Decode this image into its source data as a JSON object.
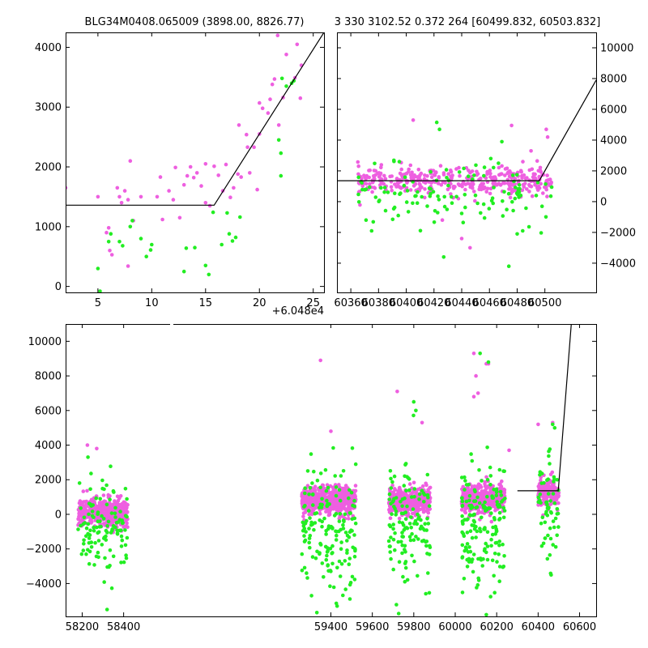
{
  "colors": {
    "magenta": "#EE5FE0",
    "green": "#22EE22",
    "line": "#000000",
    "axes": "#000000"
  },
  "panels": {
    "top_left": {
      "title": "BLG34M0408.065009 (3898.00, 8826.77)",
      "offset_label": "+6.048e4",
      "xticks": [
        5,
        10,
        15,
        20,
        25
      ],
      "yticks": [
        0,
        1000,
        2000,
        3000,
        4000
      ]
    },
    "top_right": {
      "title": "3 330 3102.52 0.372 264 [60499.832, 60503.832]",
      "xticks": [
        60360,
        60380,
        60400,
        60420,
        60440,
        60460,
        60480,
        60500
      ],
      "yticks": [
        -4000,
        -2000,
        0,
        2000,
        4000,
        6000,
        8000,
        10000
      ]
    },
    "bottom": {
      "xticks": [
        58200,
        58400,
        59400,
        59600,
        59800,
        60000,
        60200,
        60400,
        60600
      ],
      "yticks": [
        -4000,
        -2000,
        0,
        2000,
        4000,
        6000,
        8000,
        10000
      ]
    }
  },
  "chart_data": [
    {
      "type": "scatter",
      "title": "BLG34M0408.065009 (3898.00, 8826.77)",
      "x_offset": 60480,
      "xlim": [
        2,
        26
      ],
      "ylim": [
        -100,
        4250
      ],
      "grid": false,
      "model_line": [
        [
          2,
          1360
        ],
        [
          15.8,
          1360
        ],
        [
          26,
          4250
        ]
      ],
      "series": [
        {
          "color": "magenta",
          "points": [
            [
              2,
              1650
            ],
            [
              5,
              1500
            ],
            [
              5.8,
              900
            ],
            [
              6,
              980
            ],
            [
              6.1,
              600
            ],
            [
              6.3,
              530
            ],
            [
              6.8,
              1650
            ],
            [
              7,
              1500
            ],
            [
              7.2,
              1400
            ],
            [
              7.5,
              1600
            ],
            [
              7.8,
              1450
            ],
            [
              8,
              2100
            ],
            [
              8.3,
              1100
            ],
            [
              7.8,
              340
            ],
            [
              9,
              1500
            ],
            [
              10.5,
              1500
            ],
            [
              10.8,
              1830
            ],
            [
              11,
              1120
            ],
            [
              11.6,
              1600
            ],
            [
              12,
              1450
            ],
            [
              12.2,
              1990
            ],
            [
              12.6,
              1150
            ],
            [
              13,
              1700
            ],
            [
              13.3,
              1850
            ],
            [
              13.6,
              2000
            ],
            [
              13.9,
              1820
            ],
            [
              14.2,
              1900
            ],
            [
              14.6,
              1680
            ],
            [
              15,
              2050
            ],
            [
              15,
              1400
            ],
            [
              15.4,
              1350
            ],
            [
              15.8,
              2010
            ],
            [
              16.2,
              1860
            ],
            [
              16.6,
              1600
            ],
            [
              16.9,
              2040
            ],
            [
              17.3,
              1490
            ],
            [
              17.6,
              1650
            ],
            [
              18,
              1880
            ],
            [
              18.3,
              1830
            ],
            [
              18.1,
              2700
            ],
            [
              18.8,
              2540
            ],
            [
              18.9,
              2330
            ],
            [
              19.5,
              2330
            ],
            [
              19.1,
              1900
            ],
            [
              19.8,
              1620
            ],
            [
              20,
              3070
            ],
            [
              20,
              2550
            ],
            [
              20.3,
              2980
            ],
            [
              20.8,
              2900
            ],
            [
              21,
              3130
            ],
            [
              21.2,
              3380
            ],
            [
              21.4,
              3470
            ],
            [
              21.8,
              2700
            ],
            [
              21.7,
              4200
            ],
            [
              22.2,
              3160
            ],
            [
              22.5,
              3880
            ],
            [
              23.3,
              3490
            ],
            [
              23.5,
              4050
            ],
            [
              23.8,
              3150
            ],
            [
              23.9,
              3700
            ]
          ]
        },
        {
          "color": "green",
          "points": [
            [
              5,
              300
            ],
            [
              5.2,
              -80
            ],
            [
              6,
              750
            ],
            [
              6.2,
              880
            ],
            [
              7,
              750
            ],
            [
              7.3,
              680
            ],
            [
              8,
              1000
            ],
            [
              8.2,
              1100
            ],
            [
              9,
              800
            ],
            [
              9.5,
              500
            ],
            [
              9.9,
              610
            ],
            [
              10,
              700
            ],
            [
              13,
              250
            ],
            [
              13.2,
              640
            ],
            [
              14,
              650
            ],
            [
              15,
              350
            ],
            [
              15.3,
              200
            ],
            [
              15.7,
              1240
            ],
            [
              16.5,
              700
            ],
            [
              17,
              1230
            ],
            [
              17.2,
              880
            ],
            [
              17.5,
              760
            ],
            [
              17.8,
              820
            ],
            [
              18.2,
              1160
            ],
            [
              21.8,
              2450
            ],
            [
              22,
              1850
            ],
            [
              22,
              2230
            ],
            [
              22.1,
              3480
            ],
            [
              22.5,
              3350
            ],
            [
              23,
              3400
            ],
            [
              23.2,
              3440
            ]
          ]
        }
      ]
    },
    {
      "type": "scatter",
      "title": "3 330 3102.52 0.372 264 [60499.832, 60503.832]",
      "xlim": [
        60350,
        60537
      ],
      "ylim": [
        -5900,
        11000
      ],
      "grid": false,
      "model_line": [
        [
          60350,
          1360
        ],
        [
          60496,
          1360
        ],
        [
          60537,
          7900
        ]
      ],
      "series": [
        {
          "color": "magenta",
          "n": 380,
          "x_range": [
            60365,
            60505
          ],
          "center": 1350,
          "sigma": 450,
          "outliers": [
            [
              60405,
              5300
            ],
            [
              60426,
              -1200
            ],
            [
              60440,
              -2400
            ],
            [
              60446,
              -3000
            ],
            [
              60476,
              4950
            ],
            [
              60490,
              3300
            ],
            [
              60501,
              4700
            ],
            [
              60502,
              4200
            ]
          ]
        },
        {
          "color": "green",
          "n": 120,
          "x_range": [
            60365,
            60505
          ],
          "center": 400,
          "sigma": 950,
          "outliers": [
            [
              60422,
              5150
            ],
            [
              60424,
              4700
            ],
            [
              60427,
              -3600
            ],
            [
              60371,
              -1200
            ],
            [
              60375,
              -1900
            ],
            [
              60395,
              2600
            ],
            [
              60461,
              2800
            ],
            [
              60469,
              3900
            ],
            [
              60474,
              -4200
            ],
            [
              60480,
              -2100
            ],
            [
              60484,
              -1900
            ]
          ]
        }
      ]
    },
    {
      "type": "scatter",
      "xlim": [
        58120,
        60680
      ],
      "ylim": [
        -5900,
        11000
      ],
      "grid": false,
      "model_line": [
        [
          60300,
          1360
        ],
        [
          60497,
          1360
        ],
        [
          60560,
          11000
        ]
      ],
      "series": [
        {
          "color": "magenta",
          "clusters": [
            {
              "x_range": [
                58180,
                58420
              ],
              "center": 100,
              "sigma": 400,
              "n": 450
            },
            {
              "x_range": [
                59260,
                59520
              ],
              "center": 800,
              "sigma": 400,
              "n": 500
            },
            {
              "x_range": [
                59680,
                59880
              ],
              "center": 750,
              "sigma": 400,
              "n": 400
            },
            {
              "x_range": [
                60030,
                60240
              ],
              "center": 900,
              "sigma": 400,
              "n": 420
            },
            {
              "x_range": [
                60400,
                60500
              ],
              "center": 1300,
              "sigma": 400,
              "n": 200
            }
          ],
          "outliers": [
            [
              58225,
              4000
            ],
            [
              58270,
              3800
            ],
            [
              59350,
              8900
            ],
            [
              59400,
              4800
            ],
            [
              59720,
              7100
            ],
            [
              59840,
              5300
            ],
            [
              60090,
              9300
            ],
            [
              60150,
              8700
            ],
            [
              60100,
              8000
            ],
            [
              60090,
              6800
            ],
            [
              60110,
              7000
            ],
            [
              60160,
              8700
            ],
            [
              60260,
              3700
            ],
            [
              60470,
              5300
            ],
            [
              60400,
              5200
            ]
          ]
        },
        {
          "color": "green",
          "clusters": [
            {
              "x_range": [
                58180,
                58420
              ],
              "center": -800,
              "sigma": 1500,
              "n": 120
            },
            {
              "x_range": [
                59260,
                59520
              ],
              "center": -900,
              "sigma": 1800,
              "n": 170
            },
            {
              "x_range": [
                59680,
                59880
              ],
              "center": -700,
              "sigma": 1800,
              "n": 130
            },
            {
              "x_range": [
                60030,
                60240
              ],
              "center": -600,
              "sigma": 1800,
              "n": 170
            },
            {
              "x_range": [
                60400,
                60500
              ],
              "center": 200,
              "sigma": 1500,
              "n": 60
            }
          ],
          "outliers": [
            [
              59800,
              6500
            ],
            [
              59810,
              6000
            ],
            [
              60160,
              8800
            ],
            [
              60120,
              9300
            ],
            [
              60470,
              5200
            ],
            [
              60480,
              5000
            ],
            [
              59430,
              -5300
            ],
            [
              58320,
              -5500
            ],
            [
              60150,
              -5800
            ]
          ]
        }
      ]
    }
  ]
}
